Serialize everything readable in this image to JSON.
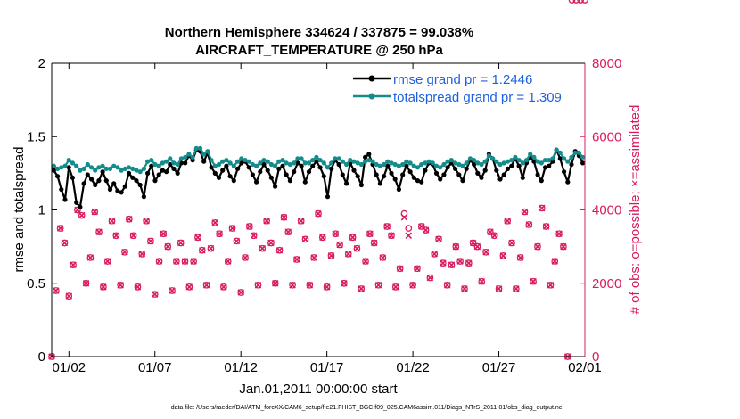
{
  "chart_data": {
    "type": "line",
    "title_line1": "Northern Hemisphere 334624 / 337875 = 99.038%",
    "title_line2": "AIRCRAFT_TEMPERATURE @ 250 hPa",
    "xlabel": "Jan.01,2011 00:00:00 start",
    "ylabel_left": "rmse and totalspread",
    "ylabel_right": "# of obs: o=possible; ×=assimilated",
    "ylim_left": [
      0,
      2
    ],
    "ylim_right": [
      0,
      8000
    ],
    "yticks_left": [
      "0",
      "0.5",
      "1",
      "1.5",
      "2"
    ],
    "yticks_right": [
      "0",
      "2000",
      "4000",
      "6000",
      "8000"
    ],
    "xlim_days": [
      0,
      31
    ],
    "xticks": [
      {
        "day": 1,
        "label": "01/02"
      },
      {
        "day": 6,
        "label": "01/07"
      },
      {
        "day": 11,
        "label": "01/12"
      },
      {
        "day": 16,
        "label": "01/17"
      },
      {
        "day": 21,
        "label": "01/22"
      },
      {
        "day": 26,
        "label": "01/27"
      },
      {
        "day": 31,
        "label": "02/01"
      }
    ],
    "colors": {
      "rmse": "#000000",
      "spread": "#148c8c",
      "obs": "#d81b60",
      "legend_text": "#1f5fe0"
    },
    "series": [
      {
        "name": "rmse grand pr = 1.2446",
        "key": "rmse",
        "values": [
          1.27,
          1.23,
          1.14,
          1.07,
          1.29,
          1.22,
          1.05,
          1.02,
          1.18,
          1.24,
          1.21,
          1.17,
          1.2,
          1.26,
          1.2,
          1.14,
          1.18,
          1.13,
          1.12,
          1.16,
          1.25,
          1.22,
          1.2,
          1.17,
          1.09,
          1.25,
          1.3,
          1.2,
          1.24,
          1.27,
          1.26,
          1.31,
          1.28,
          1.25,
          1.32,
          1.32,
          1.37,
          1.34,
          1.41,
          1.4,
          1.33,
          1.39,
          1.29,
          1.25,
          1.22,
          1.27,
          1.3,
          1.23,
          1.2,
          1.28,
          1.32,
          1.33,
          1.29,
          1.24,
          1.19,
          1.26,
          1.31,
          1.27,
          1.22,
          1.16,
          1.28,
          1.3,
          1.24,
          1.2,
          1.26,
          1.32,
          1.3,
          1.19,
          1.26,
          1.3,
          1.33,
          1.29,
          1.23,
          1.09,
          1.28,
          1.34,
          1.31,
          1.24,
          1.18,
          1.32,
          1.27,
          1.23,
          1.17,
          1.36,
          1.38,
          1.31,
          1.24,
          1.18,
          1.23,
          1.3,
          1.25,
          1.21,
          1.14,
          1.24,
          1.3,
          1.26,
          1.22,
          1.2,
          1.19,
          1.27,
          1.32,
          1.31,
          1.25,
          1.21,
          1.24,
          1.29,
          1.32,
          1.28,
          1.24,
          1.2,
          1.28,
          1.34,
          1.31,
          1.25,
          1.22,
          1.27,
          1.38,
          1.35,
          1.27,
          1.21,
          1.24,
          1.28,
          1.3,
          1.35,
          1.3,
          1.22,
          1.32,
          1.36,
          1.33,
          1.24,
          1.2,
          1.29,
          1.3,
          1.33,
          1.41,
          1.35,
          1.26,
          1.19,
          1.31,
          1.4,
          1.37,
          1.32
        ]
      },
      {
        "name": "totalspread grand pr = 1.309",
        "key": "spread",
        "values": [
          1.3,
          1.28,
          1.29,
          1.3,
          1.34,
          1.32,
          1.3,
          1.27,
          1.28,
          1.31,
          1.29,
          1.27,
          1.29,
          1.3,
          1.28,
          1.28,
          1.3,
          1.29,
          1.27,
          1.28,
          1.29,
          1.28,
          1.27,
          1.26,
          1.28,
          1.33,
          1.34,
          1.31,
          1.3,
          1.32,
          1.33,
          1.35,
          1.32,
          1.31,
          1.35,
          1.36,
          1.38,
          1.36,
          1.42,
          1.42,
          1.38,
          1.4,
          1.34,
          1.3,
          1.31,
          1.33,
          1.34,
          1.32,
          1.3,
          1.33,
          1.35,
          1.34,
          1.33,
          1.31,
          1.3,
          1.32,
          1.34,
          1.33,
          1.31,
          1.3,
          1.33,
          1.34,
          1.32,
          1.31,
          1.32,
          1.35,
          1.35,
          1.32,
          1.32,
          1.34,
          1.36,
          1.34,
          1.32,
          1.29,
          1.32,
          1.35,
          1.35,
          1.33,
          1.31,
          1.34,
          1.33,
          1.32,
          1.31,
          1.33,
          1.34,
          1.33,
          1.31,
          1.3,
          1.31,
          1.33,
          1.32,
          1.31,
          1.3,
          1.31,
          1.33,
          1.32,
          1.3,
          1.29,
          1.31,
          1.32,
          1.33,
          1.32,
          1.3,
          1.29,
          1.31,
          1.33,
          1.34,
          1.32,
          1.31,
          1.3,
          1.32,
          1.35,
          1.34,
          1.32,
          1.31,
          1.33,
          1.37,
          1.35,
          1.33,
          1.31,
          1.32,
          1.33,
          1.34,
          1.36,
          1.34,
          1.32,
          1.34,
          1.38,
          1.36,
          1.33,
          1.32,
          1.34,
          1.34,
          1.35,
          1.41,
          1.39,
          1.35,
          1.33,
          1.36,
          1.39,
          1.39,
          1.36
        ]
      }
    ],
    "obs_possible_days": [
      0.0,
      0.25,
      0.5,
      0.75,
      1.0,
      1.25,
      1.5,
      1.75,
      2.0,
      2.25,
      2.5,
      2.75,
      3.0,
      3.25,
      3.5,
      3.75,
      4.0,
      4.25,
      4.5,
      4.75,
      5.0,
      5.25,
      5.5,
      5.75,
      6.0,
      6.25,
      6.5,
      6.75,
      7.0,
      7.25,
      7.5,
      7.75,
      8.0,
      8.25,
      8.5,
      8.75,
      9.0,
      9.25,
      9.5,
      9.75,
      10.0,
      10.25,
      10.5,
      10.75,
      11.0,
      11.25,
      11.5,
      11.75,
      12.0,
      12.25,
      12.5,
      12.75,
      13.0,
      13.25,
      13.5,
      13.75,
      14.0,
      14.25,
      14.5,
      14.75,
      15.0,
      15.25,
      15.5,
      15.75,
      16.0,
      16.25,
      16.5,
      16.75,
      17.0,
      17.25,
      17.5,
      17.75,
      18.0,
      18.25,
      18.5,
      18.75,
      19.0,
      19.25,
      19.5,
      19.75,
      20.0,
      20.25,
      20.5,
      20.75,
      21.0,
      21.25,
      21.5,
      21.75,
      22.0,
      22.25,
      22.5,
      22.75,
      23.0,
      23.25,
      23.5,
      23.75,
      24.0,
      24.25,
      24.5,
      24.75,
      25.0,
      25.25,
      25.5,
      25.75,
      26.0,
      26.25,
      26.5,
      26.75,
      27.0,
      27.25,
      27.5,
      27.75,
      28.0,
      28.25,
      28.5,
      28.75,
      29.0,
      29.25,
      29.5,
      29.75,
      30.0,
      30.25,
      30.5,
      30.75,
      31.0
    ],
    "obs_possible_values": [
      0,
      1800,
      3500,
      3100,
      1650,
      2500,
      4000,
      3850,
      2000,
      2700,
      3950,
      3400,
      1900,
      2600,
      3700,
      3300,
      1950,
      2850,
      3750,
      3300,
      1900,
      2800,
      3700,
      3150,
      1700,
      2600,
      3350,
      3000,
      1800,
      2600,
      3100,
      2600,
      1900,
      2600,
      3250,
      2900,
      1950,
      2950,
      3650,
      3350,
      1900,
      2600,
      3500,
      3150,
      1750,
      2700,
      3550,
      3300,
      1950,
      2950,
      3700,
      3100,
      2000,
      2900,
      3800,
      3400,
      1950,
      2650,
      3700,
      3200,
      1950,
      2700,
      3900,
      3250,
      1900,
      2750,
      3350,
      3050,
      2000,
      2800,
      3250,
      2950,
      1850,
      2600,
      3350,
      3100,
      1950,
      2700,
      3550,
      3300,
      1900,
      2400,
      3900,
      3500,
      1950,
      2400,
      3550,
      3450,
      2150,
      2800,
      3200,
      2550,
      1950,
      2500,
      3000,
      2600,
      1850,
      2550,
      3100,
      3000,
      2050,
      2850,
      3400,
      3300,
      1850,
      2750,
      3700,
      3100,
      1850,
      2700,
      3950,
      3600,
      2050,
      3000,
      4050,
      3550,
      1950,
      2600,
      3350,
      3000,
      0
    ],
    "obs_assimilated_values": [
      0,
      1800,
      3500,
      3100,
      1650,
      2500,
      4000,
      3850,
      2000,
      2700,
      3950,
      3400,
      1900,
      2600,
      3700,
      3300,
      1950,
      2850,
      3750,
      3300,
      1900,
      2800,
      3700,
      3150,
      1700,
      2600,
      3350,
      3000,
      1800,
      2600,
      3100,
      2600,
      1900,
      2600,
      3250,
      2900,
      1950,
      2950,
      3650,
      3350,
      1900,
      2600,
      3500,
      3150,
      1750,
      2700,
      3550,
      3300,
      1950,
      2950,
      3700,
      3100,
      2000,
      2900,
      3800,
      3400,
      1950,
      2650,
      3700,
      3200,
      1950,
      2700,
      3900,
      3250,
      1900,
      2750,
      3350,
      3050,
      2000,
      2800,
      3250,
      2950,
      1850,
      2600,
      3350,
      3100,
      1950,
      2700,
      3550,
      3300,
      1900,
      2400,
      3800,
      3300,
      1950,
      2400,
      3550,
      3450,
      2150,
      2800,
      3200,
      2550,
      1950,
      2500,
      3000,
      2600,
      1850,
      2550,
      3100,
      3000,
      2050,
      2850,
      3400,
      3300,
      1850,
      2750,
      3700,
      3100,
      1850,
      2700,
      3950,
      3600,
      2050,
      3000,
      4050,
      3550,
      1950,
      2600,
      3350,
      3000,
      0
    ],
    "footer": "data file: /Users/raeder/DAI/ATM_forcXX/CAM6_setup/f.e21.FHIST_BGC.f09_025.CAM6assim.011/Diags_NTrS_2011-01/obs_diag_output.nc"
  }
}
